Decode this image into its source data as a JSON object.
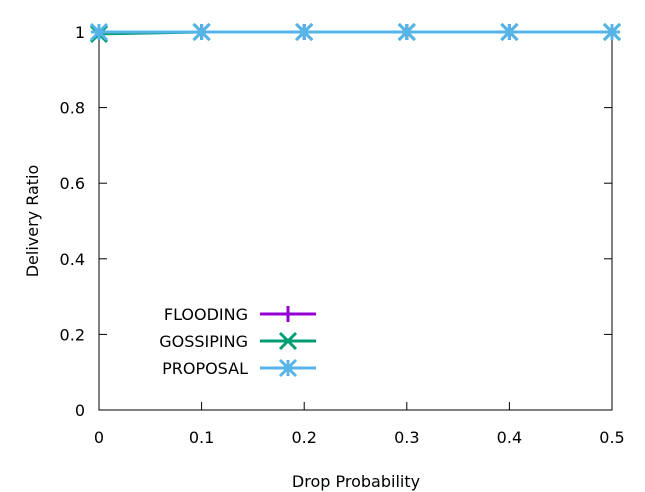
{
  "chart_data": {
    "type": "line",
    "title": "",
    "xlabel": "Drop Probability",
    "ylabel": "Delivery Ratio",
    "xlim": [
      0,
      0.5
    ],
    "ylim": [
      0,
      1
    ],
    "x_ticks": [
      "0",
      "0.1",
      "0.2",
      "0.3",
      "0.4",
      "0.5"
    ],
    "y_ticks": [
      "0",
      "0.2",
      "0.4",
      "0.6",
      "0.8",
      "1"
    ],
    "grid": false,
    "legend_position": "bottom-left",
    "x": [
      0,
      0.1,
      0.2,
      0.3,
      0.4,
      0.5
    ],
    "series": [
      {
        "name": "FLOODING",
        "values": [
          1,
          1,
          1,
          1,
          1,
          1
        ],
        "color": "#9400d3",
        "marker": "plus"
      },
      {
        "name": "GOSSIPING",
        "values": [
          0.995,
          1,
          1,
          1,
          1,
          1
        ],
        "color": "#009e73",
        "marker": "x"
      },
      {
        "name": "PROPOSAL",
        "values": [
          1,
          1,
          1,
          1,
          1,
          1
        ],
        "color": "#56b4e9",
        "marker": "star"
      }
    ]
  }
}
